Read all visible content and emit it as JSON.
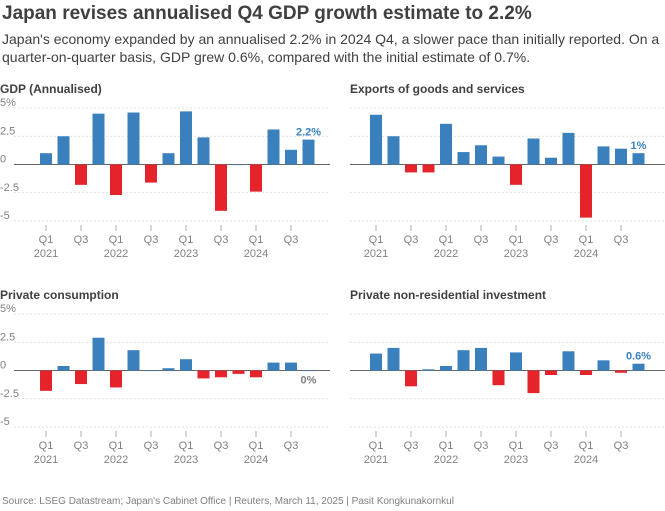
{
  "header": {
    "title": "Japan revises annualised Q4 GDP growth estimate to 2.2%",
    "subtitle": "Japan's economy expanded by an annualised 2.2% in 2024 Q4, a slower pace than initially reported. On a quarter-on-quarter basis, GDP grew 0.6%, compared with the initial estimate of 0.7%."
  },
  "footer": {
    "source": "Source: LSEG Datastream; Japan's Cabinet Office | Reuters, March 11, 2025 | Pasit Kongkunakornkul"
  },
  "colors": {
    "positive": "#3a80bd",
    "negative": "#e5232b",
    "label": "#3a80bd",
    "grid": "#d9d9d9",
    "text": "#404040"
  },
  "chart_data": [
    {
      "type": "bar",
      "title": "GDP (Annualised)",
      "categories": [
        "2021 Q1",
        "2021 Q2",
        "2021 Q3",
        "2021 Q4",
        "2022 Q1",
        "2022 Q2",
        "2022 Q3",
        "2022 Q4",
        "2023 Q1",
        "2023 Q2",
        "2023 Q3",
        "2023 Q4",
        "2024 Q1",
        "2024 Q2",
        "2024 Q3",
        "2024 Q4"
      ],
      "values": [
        1.0,
        2.5,
        -1.8,
        4.5,
        -2.7,
        4.6,
        -1.6,
        1.0,
        4.7,
        2.4,
        -4.1,
        0.0,
        -2.4,
        3.1,
        1.3,
        2.2
      ],
      "ylim": [
        -5,
        5
      ],
      "yticks": [
        "5%",
        "2.5",
        "0",
        "-2.5",
        "-5"
      ],
      "tick_labels": [
        "Q1",
        "Q3",
        "Q1",
        "Q3",
        "Q1",
        "Q3",
        "Q1",
        "Q3"
      ],
      "year_labels": [
        "2021",
        "2022",
        "2023",
        "2024"
      ],
      "last_label": "2.2%"
    },
    {
      "type": "bar",
      "title": "Exports of goods and services",
      "categories": [
        "2021 Q1",
        "2021 Q2",
        "2021 Q3",
        "2021 Q4",
        "2022 Q1",
        "2022 Q2",
        "2022 Q3",
        "2022 Q4",
        "2023 Q1",
        "2023 Q2",
        "2023 Q3",
        "2023 Q4",
        "2024 Q1",
        "2024 Q2",
        "2024 Q3",
        "2024 Q4"
      ],
      "values": [
        4.4,
        2.5,
        -0.7,
        -0.7,
        3.6,
        1.1,
        1.7,
        0.7,
        -1.8,
        2.3,
        0.6,
        2.8,
        -4.7,
        1.6,
        1.4,
        1.0
      ],
      "ylim": [
        -5,
        5
      ],
      "yticks": [
        "5%",
        "2.5",
        "0",
        "-2.5",
        "-5"
      ],
      "tick_labels": [
        "Q1",
        "Q3",
        "Q1",
        "Q3",
        "Q1",
        "Q3",
        "Q1",
        "Q3"
      ],
      "year_labels": [
        "2021",
        "2022",
        "2023",
        "2024"
      ],
      "last_label": "1%"
    },
    {
      "type": "bar",
      "title": "Private consumption",
      "categories": [
        "2021 Q1",
        "2021 Q2",
        "2021 Q3",
        "2021 Q4",
        "2022 Q1",
        "2022 Q2",
        "2022 Q3",
        "2022 Q4",
        "2023 Q1",
        "2023 Q2",
        "2023 Q3",
        "2023 Q4",
        "2024 Q1",
        "2024 Q2",
        "2024 Q3",
        "2024 Q4"
      ],
      "values": [
        -1.8,
        0.4,
        -1.2,
        2.9,
        -1.5,
        1.8,
        0.0,
        0.2,
        1.0,
        -0.7,
        -0.6,
        -0.3,
        -0.6,
        0.7,
        0.7,
        0.0
      ],
      "ylim": [
        -5,
        5
      ],
      "yticks": [
        "5%",
        "2.5",
        "0",
        "-2.5",
        "-5"
      ],
      "tick_labels": [
        "Q1",
        "Q3",
        "Q1",
        "Q3",
        "Q1",
        "Q3",
        "Q1",
        "Q3"
      ],
      "year_labels": [
        "2021",
        "2022",
        "2023",
        "2024"
      ],
      "last_label": "0%"
    },
    {
      "type": "bar",
      "title": "Private non-residential investment",
      "categories": [
        "2021 Q1",
        "2021 Q2",
        "2021 Q3",
        "2021 Q4",
        "2022 Q1",
        "2022 Q2",
        "2022 Q3",
        "2022 Q4",
        "2023 Q1",
        "2023 Q2",
        "2023 Q3",
        "2023 Q4",
        "2024 Q1",
        "2024 Q2",
        "2024 Q3",
        "2024 Q4"
      ],
      "values": [
        1.5,
        2.0,
        -1.4,
        0.1,
        0.4,
        1.8,
        2.0,
        -1.3,
        1.6,
        -2.0,
        -0.4,
        1.7,
        -0.4,
        0.9,
        -0.2,
        0.6
      ],
      "ylim": [
        -5,
        5
      ],
      "yticks": [
        "5%",
        "2.5",
        "0",
        "-2.5",
        "-5"
      ],
      "tick_labels": [
        "Q1",
        "Q3",
        "Q1",
        "Q3",
        "Q1",
        "Q3",
        "Q1",
        "Q3"
      ],
      "year_labels": [
        "2021",
        "2022",
        "2023",
        "2024"
      ],
      "last_label": "0.6%"
    }
  ]
}
